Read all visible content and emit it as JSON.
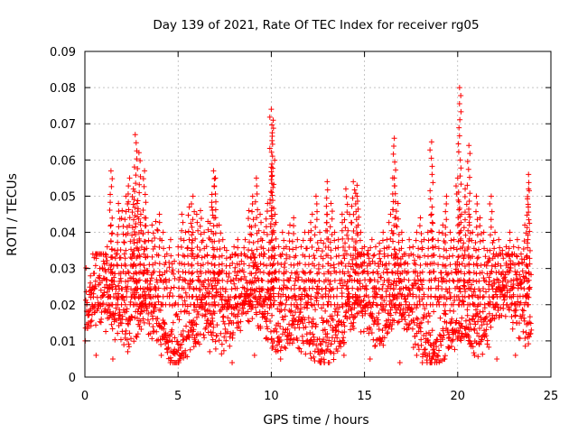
{
  "chart_data": {
    "type": "scatter",
    "title": "Day 139 of 2021, Rate Of TEC Index for receiver rg05",
    "xlabel": "GPS time / hours",
    "ylabel": "ROTI / TECUs",
    "xlim": [
      0,
      25
    ],
    "ylim": [
      0,
      0.09
    ],
    "xticks": [
      "0",
      "5",
      "10",
      "15",
      "20",
      "25"
    ],
    "yticks": [
      "0",
      "0.01",
      "0.02",
      "0.03",
      "0.04",
      "0.05",
      "0.06",
      "0.07",
      "0.08",
      "0.09"
    ],
    "grid": true,
    "marker": "plus",
    "color": "#ff0000",
    "series": [
      {
        "x": [
          0.1,
          0.3,
          0.5,
          0.8,
          1.0,
          1.2,
          1.4,
          1.6,
          1.8,
          2.0,
          2.2,
          2.4,
          2.6,
          2.8,
          3.0,
          3.2,
          3.4,
          3.6,
          3.8,
          4.0,
          4.2,
          4.4,
          4.6,
          4.8,
          5.0,
          5.2,
          5.4,
          5.6,
          5.8,
          6.0,
          6.2,
          6.4,
          6.6,
          6.8,
          7.0,
          7.2,
          7.4,
          7.6,
          7.8,
          8.0,
          8.2,
          8.4,
          8.6,
          8.8,
          9.0,
          9.2,
          9.4,
          9.6,
          9.8,
          10.0,
          10.2,
          10.4,
          10.6,
          10.8,
          11.0,
          11.2,
          11.4,
          11.6,
          11.8,
          12.0,
          12.2,
          12.4,
          12.6,
          12.8,
          13.0,
          13.2,
          13.4,
          13.6,
          13.8,
          14.0,
          14.2,
          14.4,
          14.6,
          14.8,
          15.0,
          15.2,
          15.4,
          15.6,
          15.8,
          16.0,
          16.2,
          16.4,
          16.6,
          16.8,
          17.0,
          17.2,
          17.4,
          17.6,
          17.8,
          18.0,
          18.2,
          18.4,
          18.6,
          18.8,
          19.0,
          19.2,
          19.4,
          19.6,
          19.8,
          20.0,
          20.2,
          20.4,
          20.6,
          20.8,
          21.0,
          21.2,
          21.4,
          21.6,
          21.8,
          22.0,
          22.2,
          22.4,
          22.6,
          22.8,
          23.0,
          23.2,
          23.4,
          23.6,
          23.8,
          2.7,
          2.9,
          3.2,
          10.0,
          10.1,
          16.6,
          18.6,
          20.1,
          20.6,
          23.8,
          1.4,
          5.8,
          6.9,
          13.0,
          14.6,
          0.6,
          1.5,
          2.3,
          4.1,
          5.1,
          6.7,
          7.9,
          9.1,
          10.5,
          11.6,
          12.7,
          13.9,
          15.3,
          16.9,
          17.8,
          19.3,
          20.9,
          22.1,
          23.1
        ],
        "y": [
          0.02,
          0.028,
          0.033,
          0.03,
          0.032,
          0.036,
          0.042,
          0.035,
          0.048,
          0.046,
          0.05,
          0.055,
          0.052,
          0.048,
          0.045,
          0.044,
          0.04,
          0.042,
          0.043,
          0.045,
          0.04,
          0.034,
          0.038,
          0.032,
          0.036,
          0.045,
          0.04,
          0.047,
          0.04,
          0.045,
          0.046,
          0.04,
          0.043,
          0.047,
          0.055,
          0.042,
          0.038,
          0.035,
          0.033,
          0.036,
          0.038,
          0.032,
          0.038,
          0.046,
          0.05,
          0.055,
          0.045,
          0.04,
          0.048,
          0.058,
          0.045,
          0.036,
          0.04,
          0.036,
          0.042,
          0.044,
          0.038,
          0.036,
          0.04,
          0.04,
          0.045,
          0.05,
          0.04,
          0.037,
          0.045,
          0.048,
          0.04,
          0.038,
          0.045,
          0.052,
          0.045,
          0.054,
          0.05,
          0.04,
          0.036,
          0.035,
          0.038,
          0.036,
          0.037,
          0.04,
          0.038,
          0.045,
          0.055,
          0.048,
          0.04,
          0.034,
          0.038,
          0.036,
          0.04,
          0.044,
          0.038,
          0.04,
          0.045,
          0.036,
          0.04,
          0.042,
          0.05,
          0.04,
          0.038,
          0.055,
          0.045,
          0.052,
          0.045,
          0.04,
          0.05,
          0.044,
          0.04,
          0.035,
          0.05,
          0.04,
          0.038,
          0.035,
          0.036,
          0.04,
          0.036,
          0.038,
          0.034,
          0.042,
          0.052,
          0.067,
          0.062,
          0.057,
          0.074,
          0.071,
          0.066,
          0.065,
          0.08,
          0.064,
          0.056,
          0.057,
          0.05,
          0.057,
          0.054,
          0.053,
          0.006,
          0.005,
          0.007,
          0.006,
          0.005,
          0.007,
          0.004,
          0.006,
          0.005,
          0.007,
          0.005,
          0.006,
          0.005,
          0.004,
          0.006,
          0.005,
          0.006,
          0.005,
          0.006
        ]
      }
    ]
  }
}
